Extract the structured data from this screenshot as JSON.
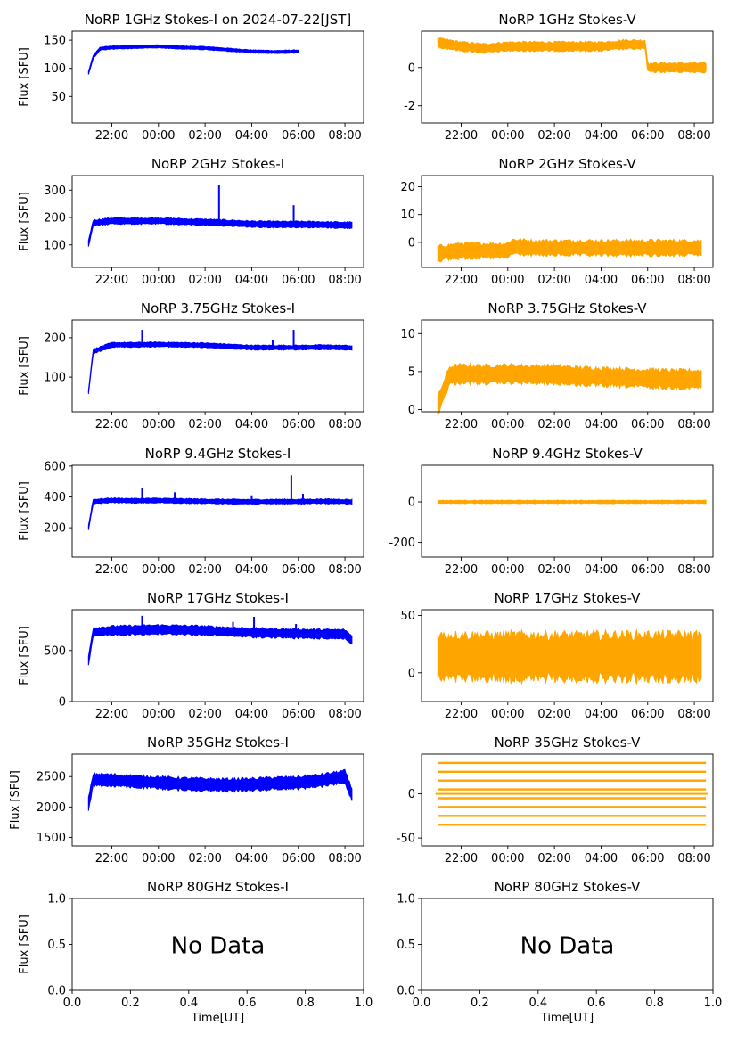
{
  "figure": {
    "title_suffix": " on 2024-07-22[JST]",
    "ylabel": "Flux [SFU]",
    "xlabel": "Time[UT]",
    "no_data_text": "No Data"
  },
  "colors": {
    "stokes_i": "#0000ff",
    "stokes_v": "#ffa500"
  },
  "time_ticks": [
    "22:00",
    "00:00",
    "02:00",
    "04:00",
    "06:00",
    "08:00"
  ],
  "chart_data": [
    {
      "type": "scatter",
      "title": "NoRP 1GHz Stokes-I",
      "ylabel": "Flux [SFU]",
      "x_hours_range": [
        20.3,
        32.8
      ],
      "ylim": [
        3,
        166
      ],
      "yticks": [
        50,
        100,
        150
      ],
      "series": [
        {
          "x_hours": [
            21.0,
            21.2,
            21.5,
            22.0,
            23.0,
            24.0,
            25.0,
            26.0,
            27.0,
            28.0,
            29.0,
            30.0
          ],
          "values": [
            92,
            120,
            135,
            137,
            138,
            139,
            137,
            136,
            133,
            130,
            129,
            130
          ]
        }
      ]
    },
    {
      "type": "scatter",
      "title": "NoRP 1GHz Stokes-V",
      "x_hours_range": [
        20.3,
        32.8
      ],
      "ylim": [
        -2.9,
        1.9
      ],
      "yticks": [
        -2,
        0
      ],
      "series": [
        {
          "x_hours": [
            21.0,
            22.0,
            23.0,
            24.0,
            25.0,
            26.0,
            27.0,
            28.0,
            29.0,
            29.9,
            30.0,
            31.0,
            32.0,
            32.5
          ],
          "values": [
            1.3,
            1.1,
            1.0,
            1.1,
            1.1,
            1.1,
            1.1,
            1.1,
            1.2,
            1.2,
            0.0,
            0.0,
            0.0,
            0.0
          ]
        }
      ]
    },
    {
      "type": "scatter",
      "title": "NoRP 2GHz Stokes-I",
      "ylabel": "Flux [SFU]",
      "x_hours_range": [
        20.3,
        32.8
      ],
      "ylim": [
        18,
        353
      ],
      "yticks": [
        100,
        200,
        300
      ],
      "series": [
        {
          "x_hours": [
            21.0,
            21.2,
            22.0,
            23.0,
            24.0,
            25.0,
            26.0,
            27.0,
            28.0,
            29.0,
            30.0,
            31.0,
            32.0,
            32.3
          ],
          "values": [
            105,
            180,
            188,
            187,
            188,
            185,
            183,
            180,
            176,
            175,
            175,
            174,
            172,
            172
          ]
        }
      ]
    },
    {
      "type": "scatter",
      "title": "NoRP 2GHz Stokes-V",
      "x_hours_range": [
        20.3,
        32.8
      ],
      "ylim": [
        -9,
        24
      ],
      "yticks": [
        0,
        10,
        20
      ],
      "series": [
        {
          "x_hours": [
            21.0,
            22.0,
            23.0,
            24.0,
            24.2,
            25.0,
            26.0,
            27.0,
            28.0,
            29.0,
            30.0,
            31.0,
            32.0,
            32.3
          ],
          "values": [
            -4,
            -3,
            -3,
            -3,
            -1.5,
            -2,
            -2,
            -2,
            -2,
            -2,
            -2,
            -2,
            -2,
            -2
          ]
        }
      ]
    },
    {
      "type": "scatter",
      "title": "NoRP 3.75GHz Stokes-I",
      "ylabel": "Flux [SFU]",
      "x_hours_range": [
        20.3,
        32.8
      ],
      "ylim": [
        12,
        245
      ],
      "yticks": [
        100,
        200
      ],
      "series": [
        {
          "x_hours": [
            21.0,
            21.2,
            22.0,
            23.0,
            24.0,
            25.0,
            26.0,
            27.0,
            28.0,
            29.0,
            30.0,
            31.0,
            32.0,
            32.3
          ],
          "values": [
            62,
            165,
            182,
            182,
            183,
            182,
            181,
            178,
            175,
            175,
            175,
            176,
            175,
            174
          ]
        }
      ]
    },
    {
      "type": "scatter",
      "title": "NoRP 3.75GHz Stokes-V",
      "x_hours_range": [
        20.3,
        32.8
      ],
      "ylim": [
        -0.3,
        11.8
      ],
      "yticks": [
        0,
        5,
        10
      ],
      "series": [
        {
          "x_hours": [
            21.0,
            21.5,
            22.0,
            23.0,
            24.0,
            25.0,
            26.0,
            27.0,
            28.0,
            29.0,
            30.0,
            31.0,
            32.0,
            32.3
          ],
          "values": [
            0.5,
            4.5,
            4.7,
            4.6,
            4.7,
            4.6,
            4.6,
            4.4,
            4.3,
            4.2,
            4.1,
            4.0,
            4.0,
            4.0
          ]
        }
      ]
    },
    {
      "type": "scatter",
      "title": "NoRP 9.4GHz Stokes-I",
      "ylabel": "Flux [SFU]",
      "x_hours_range": [
        20.3,
        32.8
      ],
      "ylim": [
        10,
        605
      ],
      "yticks": [
        200,
        400,
        600
      ],
      "series": [
        {
          "x_hours": [
            21.0,
            21.2,
            22.0,
            23.0,
            24.0,
            25.0,
            26.0,
            27.0,
            28.0,
            29.0,
            30.0,
            31.0,
            32.0,
            32.3
          ],
          "values": [
            200,
            370,
            378,
            375,
            377,
            374,
            372,
            370,
            369,
            370,
            370,
            372,
            370,
            368
          ]
        }
      ]
    },
    {
      "type": "scatter",
      "title": "NoRP 9.4GHz Stokes-V",
      "x_hours_range": [
        20.3,
        32.8
      ],
      "ylim": [
        -272,
        180
      ],
      "yticks": [
        -200,
        0
      ],
      "series": [
        {
          "x_hours": [
            21.0,
            22.0,
            24.0,
            26.0,
            28.0,
            30.0,
            32.0,
            32.5
          ],
          "values": [
            0,
            0,
            0,
            0,
            0,
            0,
            0,
            0
          ]
        }
      ]
    },
    {
      "type": "scatter",
      "title": "NoRP 17GHz Stokes-I",
      "ylabel": "Flux [SFU]",
      "x_hours_range": [
        20.3,
        32.8
      ],
      "ylim": [
        0,
        900
      ],
      "yticks": [
        0,
        500
      ],
      "series": [
        {
          "x_hours": [
            21.0,
            21.2,
            22.0,
            23.0,
            24.0,
            25.0,
            26.0,
            27.0,
            28.0,
            29.0,
            30.0,
            31.0,
            32.0,
            32.3
          ],
          "values": [
            400,
            680,
            695,
            700,
            705,
            702,
            695,
            685,
            675,
            670,
            665,
            662,
            660,
            600
          ]
        }
      ]
    },
    {
      "type": "scatter",
      "title": "NoRP 17GHz Stokes-V",
      "x_hours_range": [
        20.3,
        32.8
      ],
      "ylim": [
        -25,
        55
      ],
      "yticks": [
        0,
        50
      ],
      "series": [
        {
          "x_hours": [
            21.0,
            22.0,
            24.0,
            26.0,
            28.0,
            30.0,
            32.0,
            32.3
          ],
          "values": [
            14,
            14,
            14,
            14,
            14,
            14,
            14,
            14
          ]
        }
      ]
    },
    {
      "type": "scatter",
      "title": "NoRP 35GHz Stokes-I",
      "ylabel": "Flux [SFU]",
      "x_hours_range": [
        20.3,
        32.8
      ],
      "ylim": [
        1360,
        2870
      ],
      "yticks": [
        1500,
        2000,
        2500
      ],
      "series": [
        {
          "x_hours": [
            21.0,
            21.2,
            22.0,
            23.0,
            24.0,
            25.0,
            26.0,
            27.0,
            28.0,
            29.0,
            30.0,
            31.0,
            32.0,
            32.3
          ],
          "values": [
            2050,
            2450,
            2440,
            2420,
            2400,
            2380,
            2370,
            2360,
            2370,
            2390,
            2400,
            2440,
            2500,
            2200
          ]
        }
      ]
    },
    {
      "type": "scatter",
      "title": "NoRP 35GHz Stokes-V",
      "x_hours_range": [
        20.3,
        32.8
      ],
      "ylim": [
        -59,
        45
      ],
      "yticks": [
        -50,
        0
      ],
      "series": [
        {
          "levels": [
            35,
            25,
            15,
            5,
            -5,
            -15,
            -25,
            -35
          ],
          "x_hours_span": [
            21.0,
            32.5
          ]
        }
      ]
    },
    {
      "type": "scatter",
      "title": "NoRP 80GHz Stokes-I",
      "ylabel": "Flux [SFU]",
      "xlabel": "Time[UT]",
      "xlim": [
        0,
        1
      ],
      "ylim": [
        0,
        1
      ],
      "xticks": [
        "0.0",
        "0.2",
        "0.4",
        "0.6",
        "0.8",
        "1.0"
      ],
      "yticks": [
        "0.0",
        "0.5",
        "1.0"
      ],
      "annotation": "No Data",
      "series": []
    },
    {
      "type": "scatter",
      "title": "NoRP 80GHz Stokes-V",
      "xlabel": "Time[UT]",
      "xlim": [
        0,
        1
      ],
      "ylim": [
        0,
        1
      ],
      "xticks": [
        "0.0",
        "0.2",
        "0.4",
        "0.6",
        "0.8",
        "1.0"
      ],
      "yticks": [
        "0.0",
        "0.5",
        "1.0"
      ],
      "annotation": "No Data",
      "series": []
    }
  ]
}
